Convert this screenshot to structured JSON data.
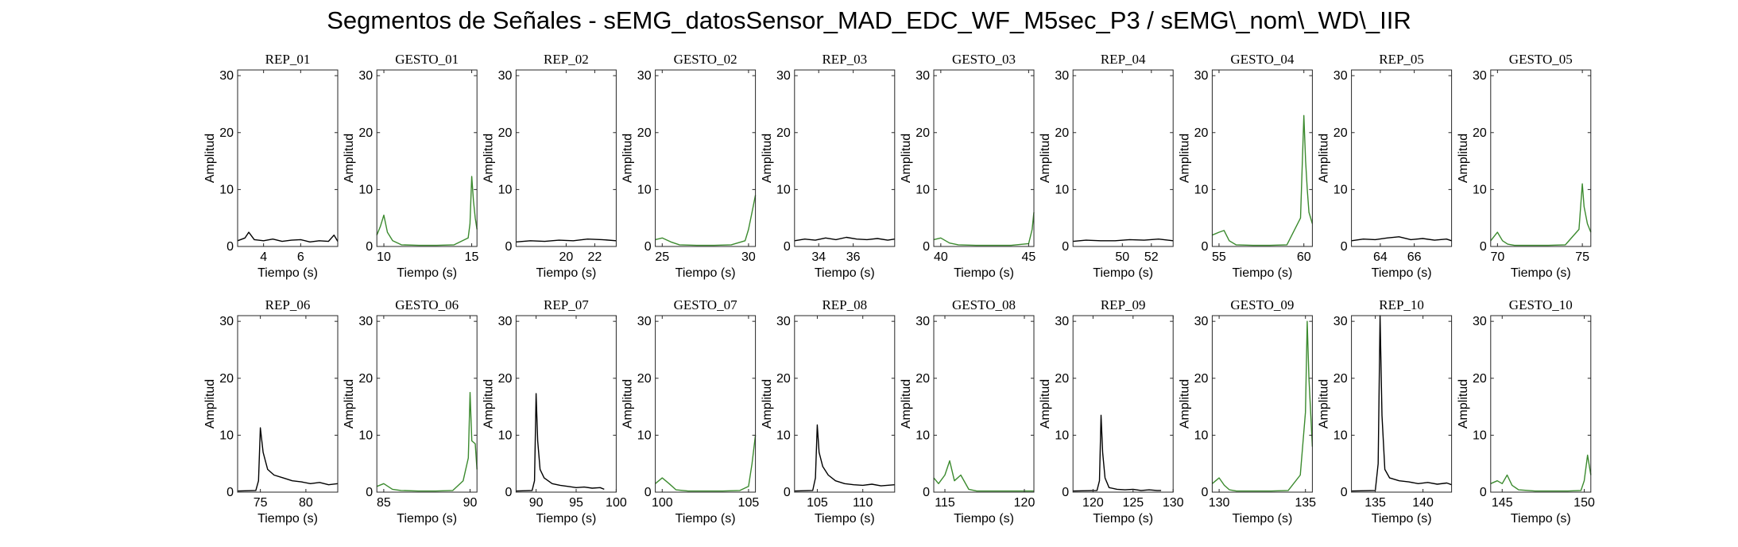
{
  "title": "Segmentos de Señales - sEMG_datosSensor_MAD_EDC_WF_M5sec_P3 / sEMG\\_nom\\_WD\\_IIR",
  "colors": {
    "rep": "#000000",
    "gesto": "#3b8a2e"
  },
  "chart_data": [
    {
      "type": "line",
      "title": "REP_01",
      "xlabel": "Tiempo (s)",
      "ylabel": "Amplitud",
      "xlim": [
        2.6,
        8.0
      ],
      "ylim": [
        0,
        31
      ],
      "xticks": [
        4,
        6
      ],
      "yticks": [
        0,
        10,
        20,
        30
      ],
      "series": [
        {
          "color": "rep",
          "x": [
            2.6,
            3.0,
            3.2,
            3.5,
            4.0,
            4.5,
            5.0,
            5.5,
            6.0,
            6.5,
            7.0,
            7.5,
            7.8,
            8.0
          ],
          "y": [
            1.0,
            1.5,
            2.5,
            1.2,
            1.0,
            1.3,
            0.9,
            1.1,
            1.2,
            0.8,
            1.0,
            0.9,
            2.0,
            0.9
          ]
        }
      ]
    },
    {
      "type": "line",
      "title": "GESTO_01",
      "xlabel": "Tiempo (s)",
      "ylabel": "Amplitud",
      "xlim": [
        9.6,
        15.3
      ],
      "ylim": [
        0,
        31
      ],
      "xticks": [
        10,
        15
      ],
      "yticks": [
        0,
        10,
        20,
        30
      ],
      "series": [
        {
          "color": "gesto",
          "x": [
            9.6,
            9.8,
            10.0,
            10.2,
            10.5,
            11.0,
            12.0,
            13.0,
            14.0,
            14.8,
            14.9,
            15.0,
            15.1,
            15.2,
            15.3
          ],
          "y": [
            2.0,
            3.5,
            5.5,
            2.5,
            1.0,
            0.3,
            0.2,
            0.2,
            0.3,
            1.5,
            4.0,
            12.3,
            8.0,
            5.0,
            3.0
          ]
        }
      ]
    },
    {
      "type": "line",
      "title": "REP_02",
      "xlabel": "Tiempo (s)",
      "ylabel": "Amplitud",
      "xlim": [
        16.5,
        23.5
      ],
      "ylim": [
        0,
        31
      ],
      "xticks": [
        20,
        22
      ],
      "yticks": [
        0,
        10,
        20,
        30
      ],
      "series": [
        {
          "color": "rep",
          "x": [
            16.5,
            17.5,
            18.5,
            19.5,
            20.5,
            21.5,
            22.5,
            23.5
          ],
          "y": [
            0.8,
            1.0,
            0.9,
            1.1,
            1.0,
            1.3,
            1.2,
            1.0
          ]
        }
      ]
    },
    {
      "type": "line",
      "title": "GESTO_02",
      "xlabel": "Tiempo (s)",
      "ylabel": "Amplitud",
      "xlim": [
        24.6,
        30.4
      ],
      "ylim": [
        0,
        31
      ],
      "xticks": [
        25,
        30
      ],
      "yticks": [
        0,
        10,
        20,
        30
      ],
      "series": [
        {
          "color": "gesto",
          "x": [
            24.6,
            25.0,
            25.5,
            26.0,
            27.0,
            28.0,
            29.0,
            29.8,
            30.0,
            30.2,
            30.4
          ],
          "y": [
            1.2,
            1.5,
            0.8,
            0.3,
            0.2,
            0.2,
            0.3,
            1.0,
            3.0,
            6.0,
            9.0
          ]
        }
      ]
    },
    {
      "type": "line",
      "title": "REP_03",
      "xlabel": "Tiempo (s)",
      "ylabel": "Amplitud",
      "xlim": [
        32.6,
        38.4
      ],
      "ylim": [
        0,
        31
      ],
      "xticks": [
        34,
        36
      ],
      "yticks": [
        0,
        10,
        20,
        30
      ],
      "series": [
        {
          "color": "rep",
          "x": [
            32.6,
            33.2,
            33.8,
            34.4,
            35.0,
            35.6,
            36.2,
            36.8,
            37.4,
            38.0,
            38.4
          ],
          "y": [
            1.0,
            1.3,
            1.1,
            1.5,
            1.2,
            1.6,
            1.3,
            1.2,
            1.4,
            1.1,
            1.3
          ]
        }
      ]
    },
    {
      "type": "line",
      "title": "GESTO_03",
      "xlabel": "Tiempo (s)",
      "ylabel": "Amplitud",
      "xlim": [
        39.6,
        45.3
      ],
      "ylim": [
        0,
        31
      ],
      "xticks": [
        40,
        45
      ],
      "yticks": [
        0,
        10,
        20,
        30
      ],
      "series": [
        {
          "color": "gesto",
          "x": [
            39.6,
            40.0,
            40.5,
            41.0,
            42.0,
            43.0,
            44.0,
            45.0,
            45.2,
            45.3
          ],
          "y": [
            1.2,
            1.5,
            0.6,
            0.3,
            0.2,
            0.2,
            0.2,
            0.5,
            3.0,
            6.0
          ]
        }
      ]
    },
    {
      "type": "line",
      "title": "REP_04",
      "xlabel": "Tiempo (s)",
      "ylabel": "Amplitud",
      "xlim": [
        46.6,
        53.5
      ],
      "ylim": [
        0,
        31
      ],
      "xticks": [
        50,
        52
      ],
      "yticks": [
        0,
        10,
        20,
        30
      ],
      "series": [
        {
          "color": "rep",
          "x": [
            46.6,
            47.5,
            48.5,
            49.5,
            50.5,
            51.5,
            52.5,
            53.5
          ],
          "y": [
            0.9,
            1.1,
            1.0,
            1.0,
            1.2,
            1.1,
            1.3,
            1.0
          ]
        }
      ]
    },
    {
      "type": "line",
      "title": "GESTO_04",
      "xlabel": "Tiempo (s)",
      "ylabel": "Amplitud",
      "xlim": [
        54.6,
        60.5
      ],
      "ylim": [
        0,
        31
      ],
      "xticks": [
        55,
        60
      ],
      "yticks": [
        0,
        10,
        20,
        30
      ],
      "series": [
        {
          "color": "gesto",
          "x": [
            54.6,
            55.0,
            55.3,
            55.6,
            56.0,
            57.0,
            58.0,
            59.0,
            59.8,
            60.0,
            60.1,
            60.2,
            60.3,
            60.5
          ],
          "y": [
            2.0,
            2.5,
            2.8,
            1.0,
            0.3,
            0.2,
            0.2,
            0.3,
            5.0,
            23.0,
            15.0,
            10.0,
            6.0,
            4.0
          ]
        }
      ]
    },
    {
      "type": "line",
      "title": "REP_05",
      "xlabel": "Tiempo (s)",
      "ylabel": "Amplitud",
      "xlim": [
        62.3,
        68.2
      ],
      "ylim": [
        0,
        31
      ],
      "xticks": [
        64,
        66
      ],
      "yticks": [
        0,
        10,
        20,
        30
      ],
      "series": [
        {
          "color": "rep",
          "x": [
            62.3,
            63.0,
            63.7,
            64.4,
            65.1,
            65.8,
            66.5,
            67.2,
            67.9,
            68.2
          ],
          "y": [
            1.0,
            1.3,
            1.2,
            1.5,
            1.7,
            1.2,
            1.4,
            1.1,
            1.3,
            1.0
          ]
        }
      ]
    },
    {
      "type": "line",
      "title": "GESTO_05",
      "xlabel": "Tiempo (s)",
      "ylabel": "Amplitud",
      "xlim": [
        69.6,
        75.5
      ],
      "ylim": [
        0,
        31
      ],
      "xticks": [
        70,
        75
      ],
      "yticks": [
        0,
        10,
        20,
        30
      ],
      "series": [
        {
          "color": "gesto",
          "x": [
            69.6,
            70.0,
            70.3,
            70.6,
            71.0,
            72.0,
            73.0,
            74.0,
            74.8,
            75.0,
            75.1,
            75.3,
            75.5
          ],
          "y": [
            1.0,
            2.5,
            1.0,
            0.4,
            0.2,
            0.2,
            0.2,
            0.3,
            3.0,
            11.0,
            7.0,
            4.0,
            2.5
          ]
        }
      ]
    },
    {
      "type": "line",
      "title": "REP_06",
      "xlabel": "Tiempo (s)",
      "ylabel": "Amplitud",
      "xlim": [
        72.5,
        83.5
      ],
      "ylim": [
        0,
        31
      ],
      "xticks": [
        75,
        80
      ],
      "yticks": [
        0,
        10,
        20,
        30
      ],
      "series": [
        {
          "color": "rep",
          "x": [
            72.5,
            74.5,
            74.8,
            75.0,
            75.3,
            75.8,
            76.5,
            77.5,
            78.5,
            79.5,
            80.5,
            81.5,
            82.5,
            83.5
          ],
          "y": [
            0.2,
            0.3,
            2.0,
            11.3,
            7.0,
            4.0,
            3.0,
            2.5,
            2.0,
            1.8,
            1.5,
            1.7,
            1.3,
            1.5
          ]
        }
      ]
    },
    {
      "type": "line",
      "title": "GESTO_06",
      "xlabel": "Tiempo (s)",
      "ylabel": "Amplitud",
      "xlim": [
        84.6,
        90.4
      ],
      "ylim": [
        0,
        31
      ],
      "xticks": [
        85,
        90
      ],
      "yticks": [
        0,
        10,
        20,
        30
      ],
      "series": [
        {
          "color": "gesto",
          "x": [
            84.6,
            85.0,
            85.5,
            86.0,
            87.0,
            88.0,
            89.0,
            89.6,
            89.9,
            90.0,
            90.1,
            90.3,
            90.4
          ],
          "y": [
            1.0,
            1.5,
            0.5,
            0.3,
            0.2,
            0.2,
            0.3,
            2.0,
            6.0,
            17.5,
            9.0,
            8.5,
            4.0
          ]
        }
      ]
    },
    {
      "type": "line",
      "title": "REP_07",
      "xlabel": "Tiempo (s)",
      "ylabel": "Amplitud",
      "xlim": [
        87.5,
        100.0
      ],
      "ylim": [
        0,
        31
      ],
      "xticks": [
        90,
        95,
        100
      ],
      "yticks": [
        0,
        10,
        20,
        30
      ],
      "series": [
        {
          "color": "rep",
          "x": [
            87.5,
            89.5,
            89.8,
            90.0,
            90.2,
            90.5,
            91.0,
            92.0,
            93.0,
            94.0,
            95.0,
            96.0,
            97.0,
            98.0,
            98.5
          ],
          "y": [
            0.2,
            0.3,
            2.0,
            17.3,
            9.0,
            4.0,
            2.5,
            1.5,
            1.2,
            1.0,
            0.8,
            0.9,
            0.7,
            0.8,
            0.5
          ]
        }
      ]
    },
    {
      "type": "line",
      "title": "GESTO_07",
      "xlabel": "Tiempo (s)",
      "ylabel": "Amplitud",
      "xlim": [
        99.6,
        105.4
      ],
      "ylim": [
        0,
        31
      ],
      "xticks": [
        100,
        105
      ],
      "yticks": [
        0,
        10,
        20,
        30
      ],
      "series": [
        {
          "color": "gesto",
          "x": [
            99.6,
            100.0,
            100.4,
            100.8,
            101.5,
            102.5,
            103.5,
            104.5,
            105.0,
            105.2,
            105.4
          ],
          "y": [
            1.5,
            2.5,
            1.5,
            0.4,
            0.2,
            0.2,
            0.2,
            0.3,
            1.0,
            5.0,
            10.0
          ]
        }
      ]
    },
    {
      "type": "line",
      "title": "REP_08",
      "xlabel": "Tiempo (s)",
      "ylabel": "Amplitud",
      "xlim": [
        102.5,
        113.5
      ],
      "ylim": [
        0,
        31
      ],
      "xticks": [
        105,
        110
      ],
      "yticks": [
        0,
        10,
        20,
        30
      ],
      "series": [
        {
          "color": "rep",
          "x": [
            102.5,
            104.5,
            104.8,
            105.0,
            105.2,
            105.6,
            106.2,
            107.0,
            108.0,
            109.0,
            110.0,
            111.0,
            112.0,
            113.5
          ],
          "y": [
            0.2,
            0.3,
            2.5,
            11.8,
            7.0,
            4.5,
            3.0,
            2.0,
            1.5,
            1.3,
            1.2,
            1.4,
            1.1,
            1.3
          ]
        }
      ]
    },
    {
      "type": "line",
      "title": "GESTO_08",
      "xlabel": "Tiempo (s)",
      "ylabel": "Amplitud",
      "xlim": [
        114.3,
        120.6
      ],
      "ylim": [
        0,
        31
      ],
      "xticks": [
        115,
        120
      ],
      "yticks": [
        0,
        10,
        20,
        30
      ],
      "series": [
        {
          "color": "gesto",
          "x": [
            114.3,
            114.6,
            115.0,
            115.3,
            115.6,
            116.0,
            116.5,
            117.0,
            118.0,
            119.0,
            120.0,
            120.6
          ],
          "y": [
            2.5,
            1.5,
            3.0,
            5.5,
            2.0,
            3.0,
            0.5,
            0.2,
            0.2,
            0.2,
            0.2,
            0.2
          ]
        }
      ]
    },
    {
      "type": "line",
      "title": "REP_09",
      "xlabel": "Tiempo (s)",
      "ylabel": "Amplitud",
      "xlim": [
        117.5,
        130.0
      ],
      "ylim": [
        0,
        31
      ],
      "xticks": [
        120,
        125,
        130
      ],
      "yticks": [
        0,
        10,
        20,
        30
      ],
      "series": [
        {
          "color": "rep",
          "x": [
            117.5,
            120.5,
            120.8,
            121.0,
            121.2,
            121.5,
            122.0,
            123.0,
            124.0,
            125.0,
            126.0,
            127.0,
            128.0,
            128.5
          ],
          "y": [
            0.2,
            0.3,
            2.0,
            13.5,
            7.0,
            2.5,
            0.8,
            0.5,
            0.4,
            0.5,
            0.3,
            0.4,
            0.3,
            0.3
          ]
        }
      ]
    },
    {
      "type": "line",
      "title": "GESTO_09",
      "xlabel": "Tiempo (s)",
      "ylabel": "Amplitud",
      "xlim": [
        129.6,
        135.4
      ],
      "ylim": [
        0,
        31
      ],
      "xticks": [
        130,
        135
      ],
      "yticks": [
        0,
        10,
        20,
        30
      ],
      "series": [
        {
          "color": "gesto",
          "x": [
            129.6,
            130.0,
            130.3,
            130.6,
            131.0,
            132.0,
            133.0,
            134.0,
            134.7,
            135.0,
            135.1,
            135.2,
            135.4
          ],
          "y": [
            1.5,
            2.5,
            1.2,
            0.4,
            0.2,
            0.2,
            0.2,
            0.3,
            3.0,
            14.0,
            30.0,
            20.0,
            8.0
          ]
        }
      ]
    },
    {
      "type": "line",
      "title": "REP_10",
      "xlabel": "Tiempo (s)",
      "ylabel": "Amplitud",
      "xlim": [
        132.5,
        143.0
      ],
      "ylim": [
        0,
        31
      ],
      "xticks": [
        135,
        140
      ],
      "yticks": [
        0,
        10,
        20,
        30
      ],
      "series": [
        {
          "color": "rep",
          "x": [
            132.5,
            135.0,
            135.3,
            135.5,
            135.7,
            136.0,
            136.5,
            137.5,
            138.5,
            139.5,
            140.5,
            141.5,
            142.5,
            143.0
          ],
          "y": [
            0.2,
            0.3,
            5.0,
            31.0,
            13.5,
            4.0,
            2.5,
            2.0,
            1.8,
            1.5,
            1.7,
            1.4,
            1.6,
            1.3
          ]
        }
      ]
    },
    {
      "type": "line",
      "title": "GESTO_10",
      "xlabel": "Tiempo (s)",
      "ylabel": "Amplitud",
      "xlim": [
        144.3,
        150.4
      ],
      "ylim": [
        0,
        31
      ],
      "xticks": [
        145,
        150
      ],
      "yticks": [
        0,
        10,
        20,
        30
      ],
      "series": [
        {
          "color": "gesto",
          "x": [
            144.3,
            144.7,
            145.0,
            145.3,
            145.6,
            146.0,
            147.0,
            148.0,
            149.0,
            149.8,
            150.0,
            150.2,
            150.4
          ],
          "y": [
            1.5,
            2.0,
            1.5,
            3.0,
            1.2,
            0.4,
            0.2,
            0.2,
            0.2,
            0.3,
            2.0,
            6.5,
            3.0
          ]
        }
      ]
    }
  ]
}
